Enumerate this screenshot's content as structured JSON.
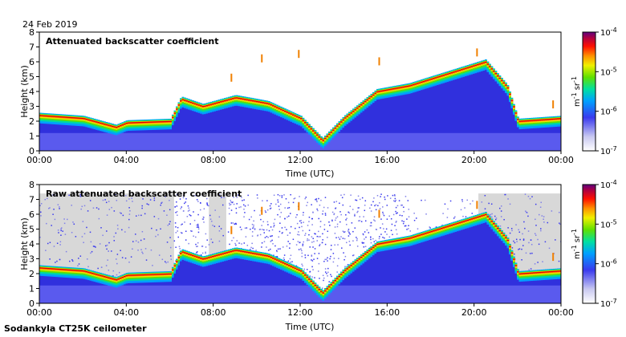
{
  "header": {
    "date": "24 Feb 2019"
  },
  "footer": {
    "instrument": "Sodankyla CT25K ceilometer"
  },
  "chart_data": [
    {
      "type": "heatmap",
      "title": "Attenuated backscatter coefficient",
      "xlabel": "Time (UTC)",
      "ylabel": "Height (km)",
      "x_ticks": [
        "00:00",
        "04:00",
        "08:00",
        "12:00",
        "16:00",
        "20:00",
        "00:00"
      ],
      "y_ticks": [
        "0",
        "1",
        "2",
        "3",
        "4",
        "5",
        "6",
        "7",
        "8"
      ],
      "xlim_hours": [
        0,
        24
      ],
      "ylim_km": [
        0,
        8
      ],
      "colorbar": {
        "scale": "log",
        "min": 1e-07,
        "max": 0.0001,
        "tick_labels": [
          {
            "base": "10",
            "exp": "-4"
          },
          {
            "base": "10",
            "exp": "-5"
          },
          {
            "base": "10",
            "exp": "-6"
          },
          {
            "base": "10",
            "exp": "-7"
          }
        ],
        "unit": {
          "m": "m",
          "m_exp": "-1",
          "sr": "sr",
          "sr_exp": "-1"
        }
      },
      "features": {
        "boundary_layer_top_km": [
          [
            0,
            2.4
          ],
          [
            2,
            2.2
          ],
          [
            3.5,
            1.6
          ],
          [
            4,
            1.9
          ],
          [
            6,
            2.0
          ],
          [
            6.5,
            3.5
          ],
          [
            7.5,
            3.0
          ],
          [
            9,
            3.6
          ],
          [
            10.5,
            3.2
          ],
          [
            12,
            2.2
          ],
          [
            13,
            0.7
          ],
          [
            14,
            2.2
          ],
          [
            15.5,
            4.0
          ],
          [
            17,
            4.4
          ],
          [
            20.5,
            6.0
          ],
          [
            21.5,
            4.3
          ],
          [
            22,
            2.0
          ],
          [
            24,
            2.2
          ]
        ]
      }
    },
    {
      "type": "heatmap",
      "title": "Raw attenuated backscatter coefficient",
      "xlabel": "Time (UTC)",
      "ylabel": "Height (km)",
      "x_ticks": [
        "00:00",
        "04:00",
        "08:00",
        "12:00",
        "16:00",
        "20:00",
        "00:00"
      ],
      "y_ticks": [
        "0",
        "1",
        "2",
        "3",
        "4",
        "5",
        "6",
        "7",
        "8"
      ],
      "xlim_hours": [
        0,
        24
      ],
      "ylim_km": [
        0,
        8
      ],
      "colorbar": {
        "scale": "log",
        "min": 1e-07,
        "max": 0.0001,
        "tick_labels": [
          {
            "base": "10",
            "exp": "-4"
          },
          {
            "base": "10",
            "exp": "-5"
          },
          {
            "base": "10",
            "exp": "-6"
          },
          {
            "base": "10",
            "exp": "-7"
          }
        ],
        "unit": {
          "m": "m",
          "m_exp": "-1",
          "sr": "sr",
          "sr_exp": "-1"
        }
      },
      "features": {
        "boundary_layer_top_km": [
          [
            0,
            2.4
          ],
          [
            2,
            2.2
          ],
          [
            3.5,
            1.6
          ],
          [
            4,
            1.9
          ],
          [
            6,
            2.0
          ],
          [
            6.5,
            3.5
          ],
          [
            7.5,
            3.0
          ],
          [
            9,
            3.6
          ],
          [
            10.5,
            3.2
          ],
          [
            12,
            2.2
          ],
          [
            13,
            0.7
          ],
          [
            14,
            2.2
          ],
          [
            15.5,
            4.0
          ],
          [
            17,
            4.4
          ],
          [
            20.5,
            6.0
          ],
          [
            21.5,
            4.3
          ],
          [
            22,
            2.0
          ],
          [
            24,
            2.2
          ]
        ]
      }
    }
  ]
}
